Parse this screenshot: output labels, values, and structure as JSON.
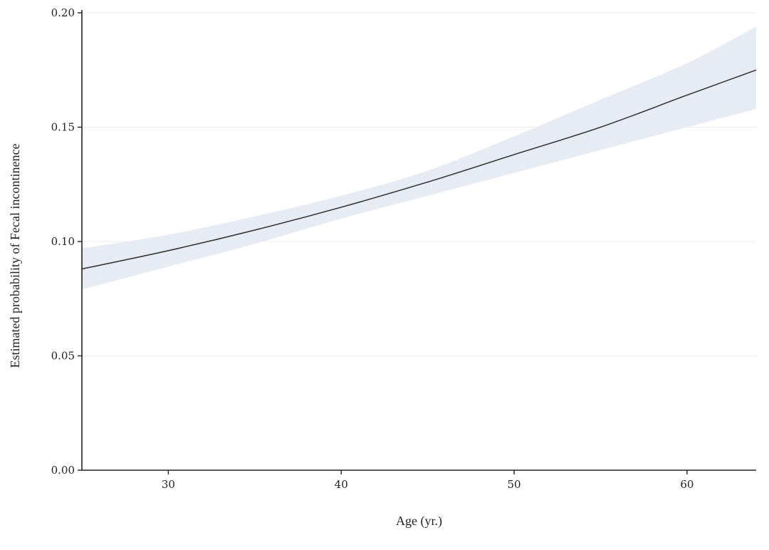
{
  "chart_data": {
    "type": "line",
    "title": "",
    "xlabel": "Age (yr.)",
    "ylabel": "Estimated probability of Fecal incontinence",
    "xlim": [
      25,
      64
    ],
    "ylim": [
      0,
      0.2
    ],
    "x_ticks": [
      30,
      40,
      50,
      60
    ],
    "y_ticks": [
      0.0,
      0.05,
      0.1,
      0.15,
      0.2
    ],
    "x_tick_labels": [
      "30",
      "40",
      "50",
      "60"
    ],
    "y_tick_labels": [
      "0.00",
      "0.05",
      "0.10",
      "0.15",
      "0.20"
    ],
    "grid": "horizontal",
    "series": [
      {
        "x": [
          25,
          30,
          35,
          40,
          45,
          50,
          55,
          60,
          64
        ],
        "y": [
          0.088,
          0.096,
          0.105,
          0.115,
          0.126,
          0.138,
          0.15,
          0.164,
          0.175
        ],
        "ci_lower": [
          0.079,
          0.089,
          0.099,
          0.11,
          0.12,
          0.13,
          0.14,
          0.15,
          0.158
        ],
        "ci_upper": [
          0.097,
          0.103,
          0.111,
          0.12,
          0.131,
          0.146,
          0.162,
          0.178,
          0.194
        ],
        "line_color": "#3a3a3a",
        "band_color": "#e6ebf4"
      }
    ]
  }
}
